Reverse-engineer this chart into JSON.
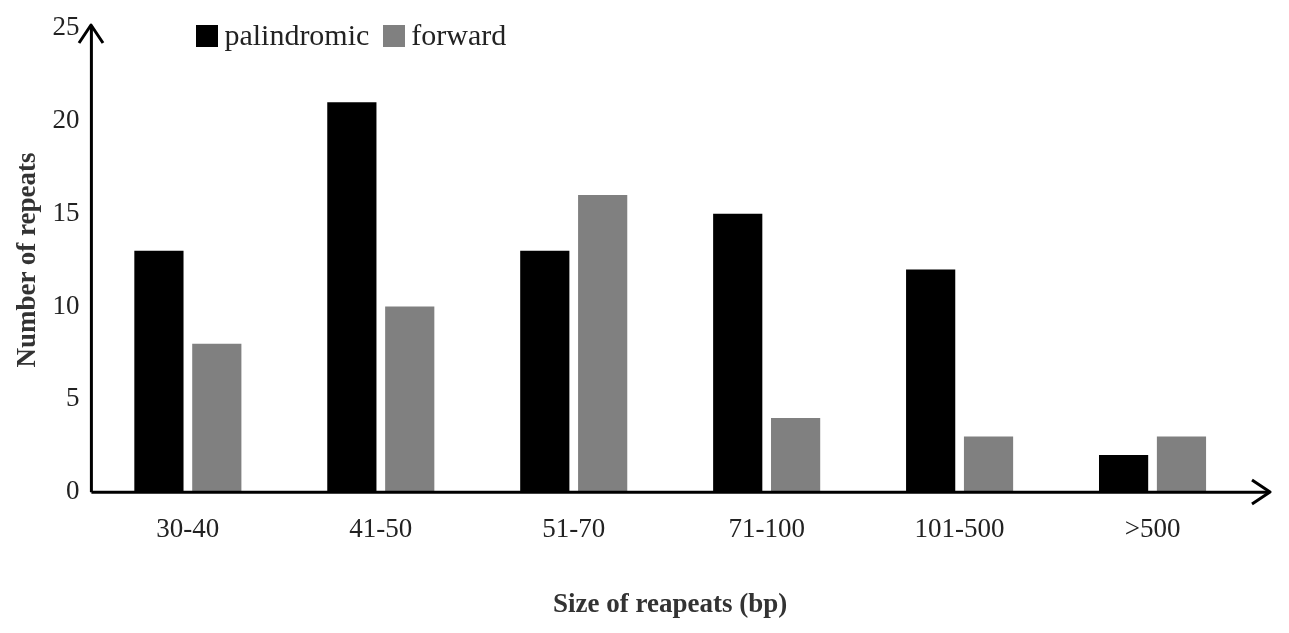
{
  "chart_data": {
    "type": "bar",
    "xlabel": "Size of reapeats (bp)",
    "ylabel": "Number of repeats",
    "categories": [
      "30-40",
      "41-50",
      "51-70",
      "71-100",
      "101-500",
      ">500"
    ],
    "series": [
      {
        "name": "palindromic",
        "color": "#000000",
        "values": [
          13,
          21,
          13,
          15,
          12,
          2
        ]
      },
      {
        "name": "forward",
        "color": "#808080",
        "values": [
          8,
          10,
          16,
          4,
          3,
          3
        ]
      }
    ],
    "ylim": [
      0,
      25
    ],
    "yticks": [
      0,
      5,
      10,
      15,
      20,
      25
    ],
    "grid": false,
    "legend": "top left"
  }
}
